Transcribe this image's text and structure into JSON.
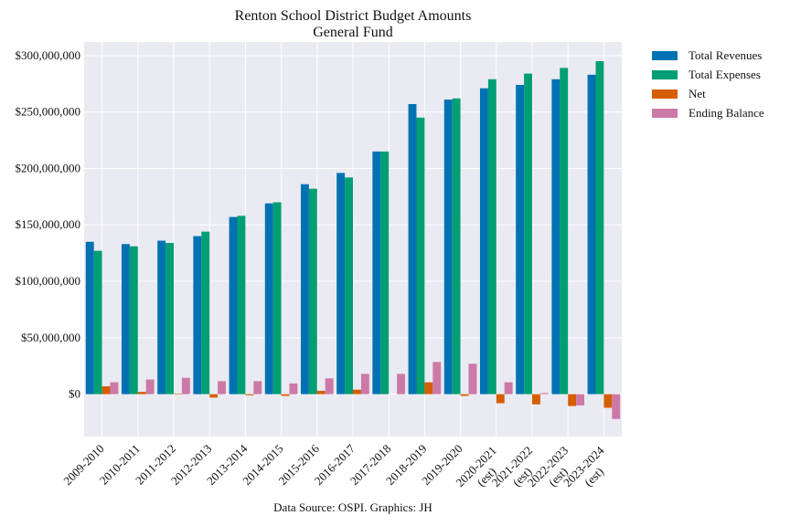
{
  "chart_data": {
    "type": "bar",
    "title": "Renton School District Budget Amounts",
    "subtitle": "General Fund",
    "footer": "Data Source: OSPI. Graphics: JH",
    "xlabel": "",
    "ylabel": "",
    "categories": [
      "2009-2010",
      "2010-2011",
      "2011-2012",
      "2012-2013",
      "2013-2014",
      "2014-2015",
      "2015-2016",
      "2016-2017",
      "2017-2018",
      "2018-2019",
      "2019-2020",
      "2020-2021\n(est)",
      "2021-2022\n(est)",
      "2022-2023\n(est)",
      "2023-2024\n(est)"
    ],
    "series": [
      {
        "name": "Total Revenues",
        "color": "#0072b2",
        "values": [
          135000000,
          133000000,
          136000000,
          140000000,
          157000000,
          169000000,
          186000000,
          196000000,
          215000000,
          257000000,
          261000000,
          271000000,
          274000000,
          279000000,
          283000000
        ]
      },
      {
        "name": "Total Expenses",
        "color": "#009e73",
        "values": [
          127000000,
          131000000,
          134000000,
          144000000,
          158000000,
          170000000,
          182000000,
          192000000,
          215000000,
          245000000,
          262000000,
          279000000,
          284000000,
          289000000,
          295000000
        ]
      },
      {
        "name": "Net",
        "color": "#d55e00",
        "values": [
          7000000,
          2000000,
          500000,
          -3000000,
          -1000000,
          -1500000,
          3000000,
          4000000,
          0,
          10500000,
          -1500000,
          -8000000,
          -9000000,
          -10500000,
          -12000000
        ]
      },
      {
        "name": "Ending Balance",
        "color": "#cc79a7",
        "values": [
          10500000,
          13000000,
          14500000,
          11500000,
          11500000,
          9500000,
          14000000,
          18000000,
          18000000,
          28500000,
          27000000,
          10500000,
          1000000,
          -10000000,
          -22000000
        ]
      }
    ],
    "yticks": [
      0,
      50000000,
      100000000,
      150000000,
      200000000,
      250000000,
      300000000
    ],
    "ytick_labels": [
      "$0",
      "$50,000,000",
      "$100,000,000",
      "$150,000,000",
      "$200,000,000",
      "$250,000,000",
      "$300,000,000"
    ],
    "ylim": [
      -37500000,
      312000000
    ],
    "grid": true,
    "legend_position": "outside-right-top"
  }
}
